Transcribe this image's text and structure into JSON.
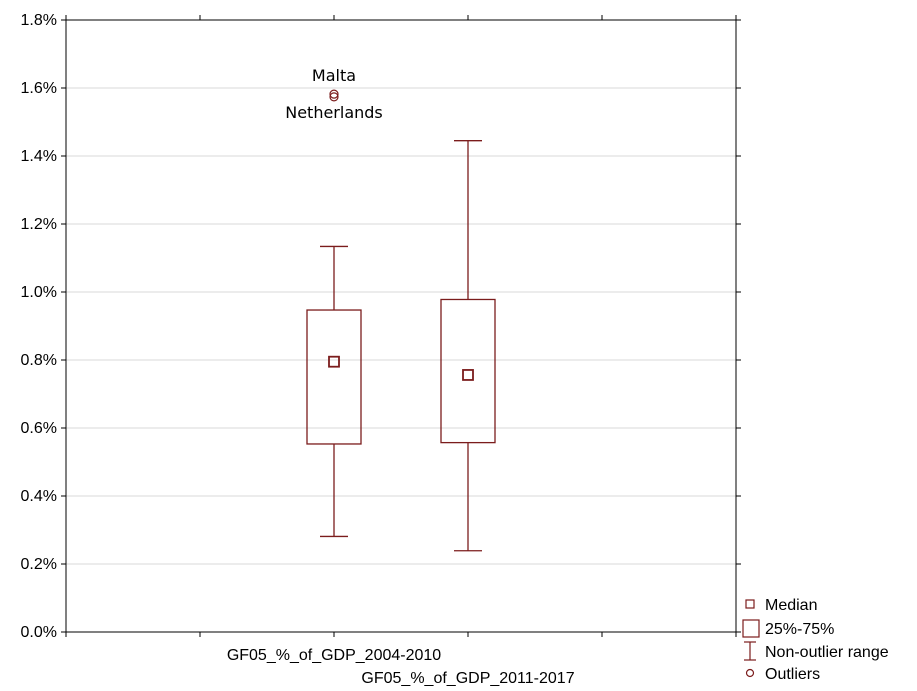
{
  "chart_data": {
    "type": "box",
    "title": "",
    "xlabel": "",
    "ylabel": "",
    "ylim": [
      0,
      0.018
    ],
    "yticks": [
      0,
      0.002,
      0.004,
      0.006,
      0.008,
      0.01,
      0.012,
      0.014,
      0.016,
      0.018
    ],
    "ytick_labels": [
      "0.0%",
      "0.2%",
      "0.4%",
      "0.6%",
      "0.8%",
      "1.0%",
      "1.2%",
      "1.4%",
      "1.6%",
      "1.8%"
    ],
    "grid": true,
    "categories": [
      "GF05_%_of_GDP_2004-2010",
      "GF05_%_of_GDP_2011-2017"
    ],
    "boxes": [
      {
        "category": "GF05_%_of_GDP_2004-2010",
        "median": 0.00795,
        "q1": 0.00553,
        "q3": 0.00947,
        "whisker_low": 0.00281,
        "whisker_high": 0.01134,
        "outliers": [
          {
            "value": 0.01582,
            "label": "Malta"
          },
          {
            "value": 0.01574,
            "label": "Netherlands"
          }
        ]
      },
      {
        "category": "GF05_%_of_GDP_2011-2017",
        "median": 0.00756,
        "q1": 0.00557,
        "q3": 0.00978,
        "whisker_low": 0.00239,
        "whisker_high": 0.01445,
        "outliers": []
      }
    ],
    "legend": {
      "position": "bottom-right",
      "items": [
        {
          "symbol": "median",
          "label": "Median"
        },
        {
          "symbol": "box",
          "label": "25%-75%"
        },
        {
          "symbol": "whisker",
          "label": "Non-outlier range"
        },
        {
          "symbol": "outlier",
          "label": "Outliers"
        }
      ]
    },
    "colors": {
      "box": "#7b1c1c",
      "grid": "#d9d9d9",
      "axis": "#000000"
    }
  }
}
